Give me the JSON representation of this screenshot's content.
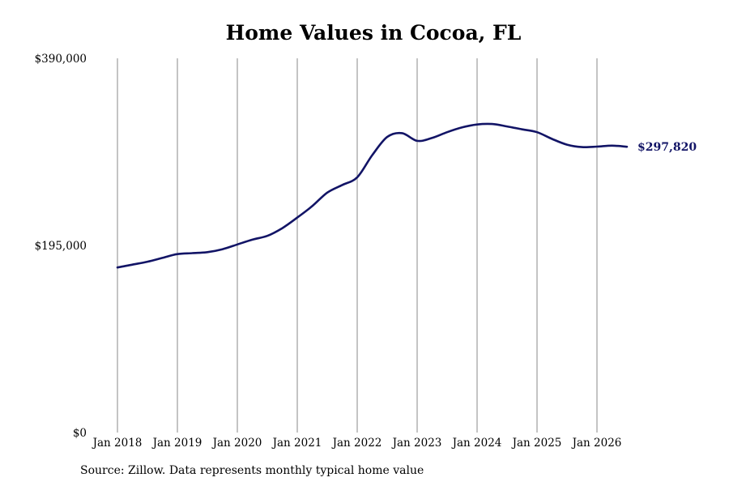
{
  "chart_data": {
    "type": "line",
    "title": "Home Values in Cocoa, FL",
    "xlabel": "",
    "ylabel": "",
    "ylim": [
      0,
      390000
    ],
    "y_ticks": [
      {
        "value": 0,
        "label": "$0"
      },
      {
        "value": 195000,
        "label": "$195,000"
      },
      {
        "value": 390000,
        "label": "$390,000"
      }
    ],
    "x_ticks": [
      {
        "value": "2018-01",
        "label": "Jan 2018"
      },
      {
        "value": "2019-01",
        "label": "Jan 2019"
      },
      {
        "value": "2020-01",
        "label": "Jan 2020"
      },
      {
        "value": "2021-01",
        "label": "Jan 2021"
      },
      {
        "value": "2022-01",
        "label": "Jan 2022"
      },
      {
        "value": "2023-01",
        "label": "Jan 2023"
      },
      {
        "value": "2024-01",
        "label": "Jan 2024"
      },
      {
        "value": "2025-01",
        "label": "Jan 2025"
      },
      {
        "value": "2026-01",
        "label": "Jan 2026"
      }
    ],
    "grid": {
      "vertical": true,
      "horditional": false
    },
    "line_color": "#121466",
    "grid_color": "#888888",
    "series": [
      {
        "points": [
          {
            "x": "2018-01",
            "y": 172000
          },
          {
            "x": "2018-04",
            "y": 175000
          },
          {
            "x": "2018-07",
            "y": 178000
          },
          {
            "x": "2018-10",
            "y": 182000
          },
          {
            "x": "2019-01",
            "y": 186000
          },
          {
            "x": "2019-04",
            "y": 187000
          },
          {
            "x": "2019-07",
            "y": 188000
          },
          {
            "x": "2019-10",
            "y": 191000
          },
          {
            "x": "2020-01",
            "y": 196000
          },
          {
            "x": "2020-04",
            "y": 201000
          },
          {
            "x": "2020-07",
            "y": 205000
          },
          {
            "x": "2020-10",
            "y": 213000
          },
          {
            "x": "2021-01",
            "y": 224000
          },
          {
            "x": "2021-04",
            "y": 236000
          },
          {
            "x": "2021-07",
            "y": 250000
          },
          {
            "x": "2021-10",
            "y": 258000
          },
          {
            "x": "2022-01",
            "y": 266000
          },
          {
            "x": "2022-04",
            "y": 289000
          },
          {
            "x": "2022-07",
            "y": 308000
          },
          {
            "x": "2022-10",
            "y": 312000
          },
          {
            "x": "2023-01",
            "y": 304000
          },
          {
            "x": "2023-04",
            "y": 307000
          },
          {
            "x": "2023-07",
            "y": 313000
          },
          {
            "x": "2023-10",
            "y": 318000
          },
          {
            "x": "2024-01",
            "y": 321000
          },
          {
            "x": "2024-04",
            "y": 321500
          },
          {
            "x": "2024-07",
            "y": 319000
          },
          {
            "x": "2024-10",
            "y": 316000
          },
          {
            "x": "2025-01",
            "y": 313000
          },
          {
            "x": "2025-04",
            "y": 306000
          },
          {
            "x": "2025-07",
            "y": 300000
          },
          {
            "x": "2025-10",
            "y": 297500
          },
          {
            "x": "2026-01",
            "y": 298000
          },
          {
            "x": "2026-04",
            "y": 299000
          },
          {
            "x": "2026-07",
            "y": 297820
          }
        ]
      }
    ],
    "end_label": "$297,820"
  },
  "footer": {
    "source": "Source: Zillow. Data represents monthly typical home value"
  }
}
